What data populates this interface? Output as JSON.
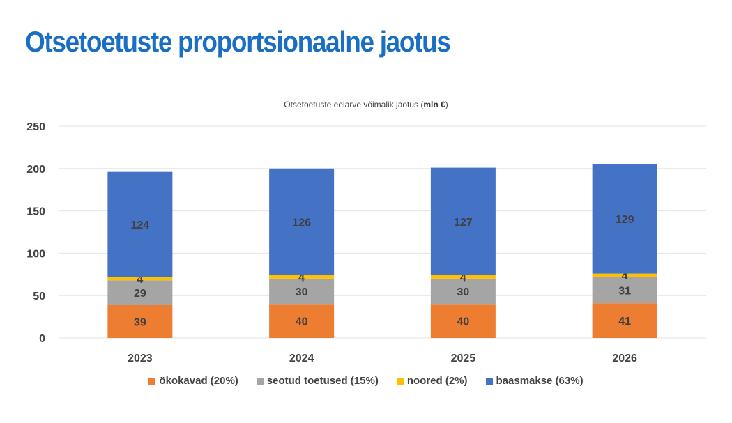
{
  "page_title": "Otsetoetuste proportsionaalne jaotus",
  "chart_data": {
    "type": "bar",
    "stacked": true,
    "title_prefix": "Otsetoetuste eelarve võimalik jaotus (",
    "title_bold": "mln €",
    "title_suffix": ")",
    "categories": [
      "2023",
      "2024",
      "2025",
      "2026"
    ],
    "series": [
      {
        "name": "ökokavad (20%)",
        "color": "#ed7d31",
        "values": [
          39,
          40,
          40,
          41
        ]
      },
      {
        "name": "seotud toetused (15%)",
        "color": "#a5a5a5",
        "values": [
          29,
          30,
          30,
          31
        ]
      },
      {
        "name": "noored (2%)",
        "color": "#ffc000",
        "values": [
          4,
          4,
          4,
          4
        ]
      },
      {
        "name": "baasmakse (63%)",
        "color": "#4472c4",
        "values": [
          124,
          126,
          127,
          129
        ]
      }
    ],
    "ylim": [
      0,
      250
    ],
    "yticks": [
      0,
      50,
      100,
      150,
      200,
      250
    ],
    "grid": true,
    "legend_position": "bottom"
  }
}
